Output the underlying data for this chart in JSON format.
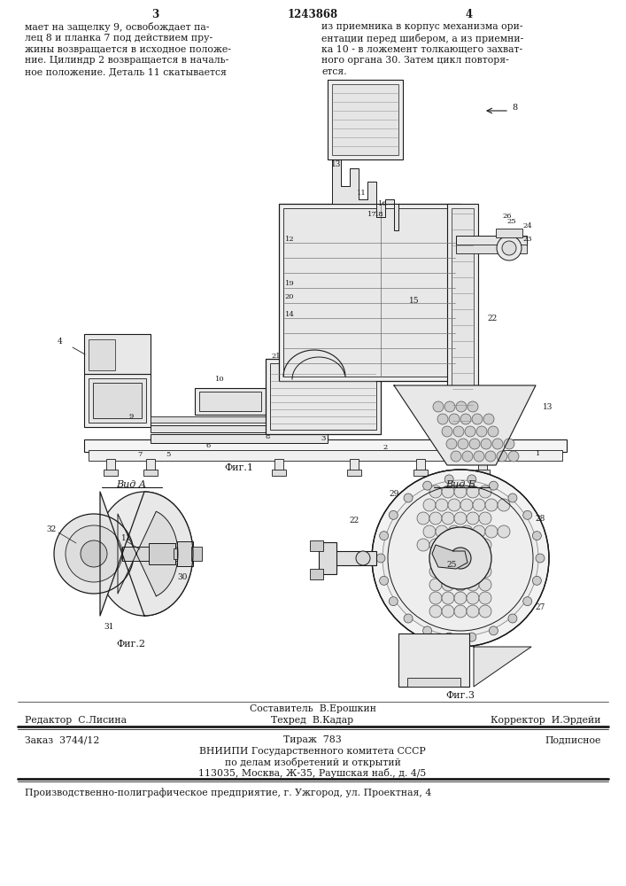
{
  "page_number_left": "3",
  "page_number_right": "4",
  "patent_number": "1243868",
  "top_text_left": [
    "мает на защелку 9, освобождает па-",
    "лец 8 и планка 7 под действием пру-",
    "жины возвращается в исходное положе-",
    "ние. Цилиндр 2 возвращается в началь-",
    "ное положение. Деталь 11 скатывается"
  ],
  "top_text_right": [
    "из приемника в корпус механизма ори-",
    "ентации перед шибером, а из приемни-",
    "ка 10 - в ложемент толкающего захват-",
    "ного органа 30. Затем цикл повторя-",
    "ется."
  ],
  "fig1_label": "Фиг.1",
  "fig2_label": "Фиг.2",
  "fig3_label": "Фиг.3",
  "vid_a_label": "Вид А",
  "vid_b_label": "Вид Б",
  "footer_line1_center": "Составитель  В.Ерошкин",
  "footer_line2_left": "Редактор  С.Лисина",
  "footer_line2_center": "Техред  В.Кадар",
  "footer_line2_right": "Корректор  И.Эрдейи",
  "footer_line3_left": "Заказ  3744/12",
  "footer_line3_center": "Тираж  783",
  "footer_line3_right": "Подписное",
  "footer_line4": "ВНИИПИ Государственного комитета СССР",
  "footer_line5": "по делам изобретений и открытий",
  "footer_line6": "113035, Москва, Ж-35, Раушская наб., д. 4/5",
  "footer_last": "Производственно-полиграфическое предприятие, г. Ужгород, ул. Проектная, 4",
  "bg_color": "#ffffff",
  "lc": "#1a1a1a"
}
